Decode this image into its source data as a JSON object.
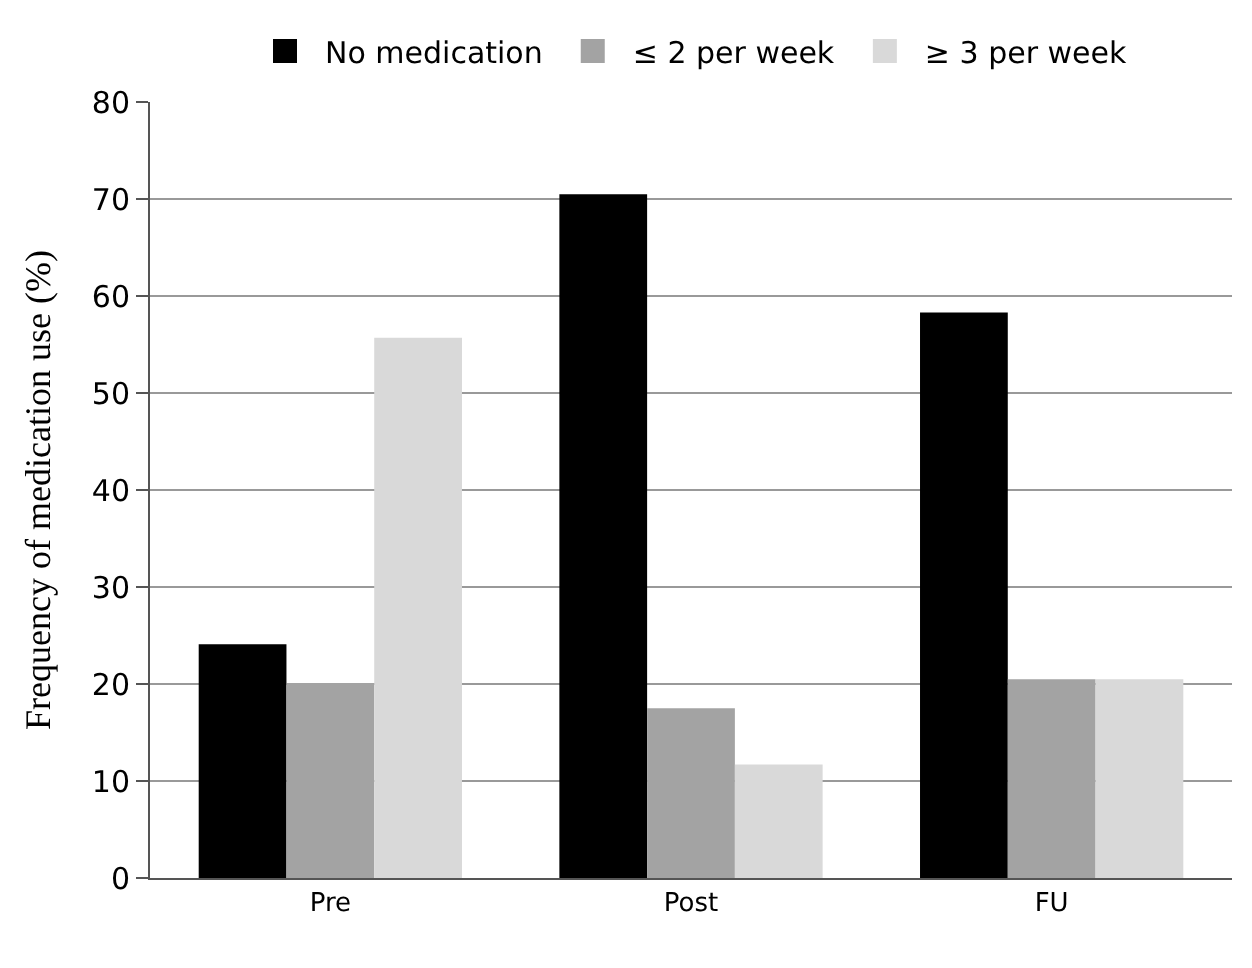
{
  "chart_data": {
    "type": "bar",
    "ylabel": "Frequency of medication use (%)",
    "categories": [
      "Pre",
      "Post",
      "FU"
    ],
    "series": [
      {
        "name": "No medication",
        "color": "#000000",
        "values": [
          24.1,
          70.5,
          58.3
        ]
      },
      {
        "name": "≤ 2 per week",
        "color": "#a3a3a3",
        "values": [
          20.1,
          17.5,
          20.5
        ]
      },
      {
        "name": "≥ 3 per week",
        "color": "#d9d9d9",
        "values": [
          55.7,
          11.7,
          20.5
        ]
      }
    ],
    "ylim": [
      0,
      80
    ],
    "yticks": [
      0,
      10,
      20,
      30,
      40,
      50,
      60,
      70,
      80
    ],
    "grid": "y",
    "legend": "top"
  }
}
